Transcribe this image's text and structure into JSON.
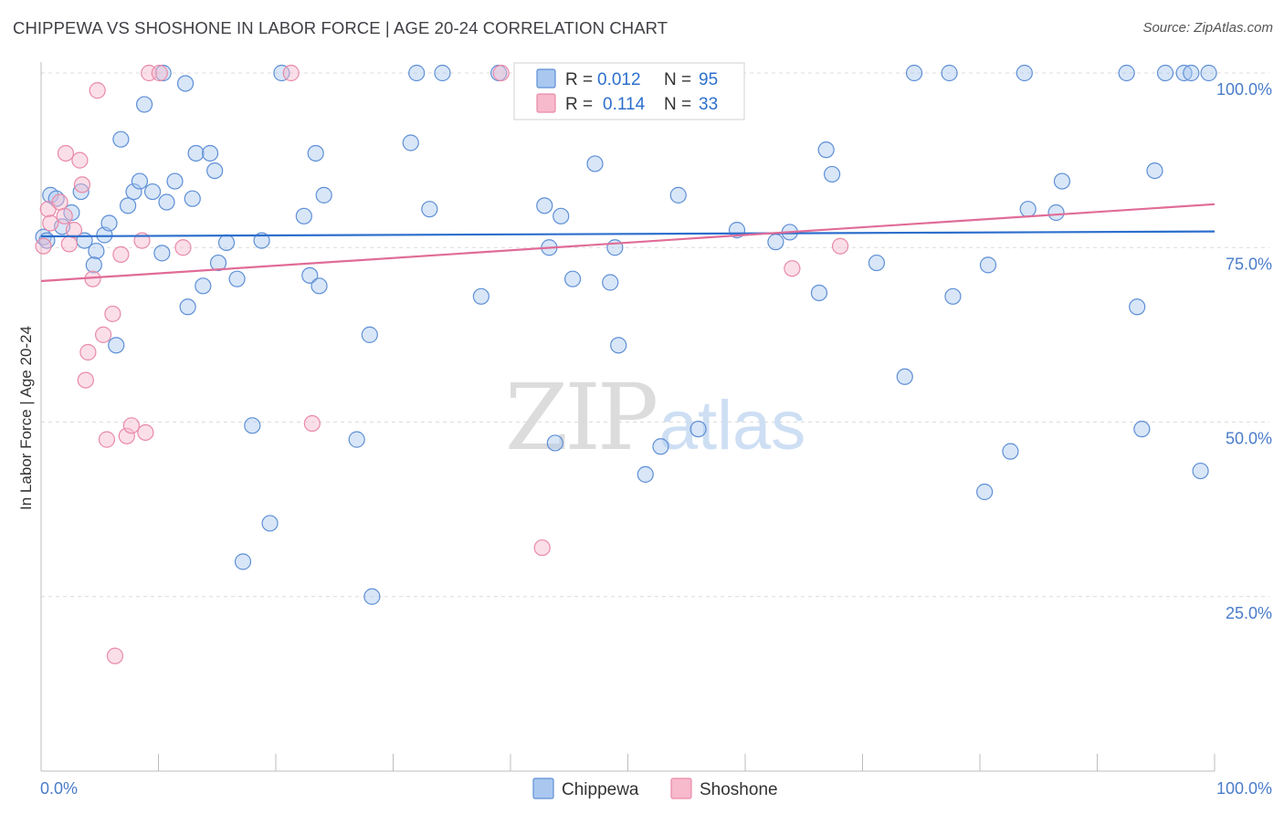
{
  "title": "CHIPPEWA VS SHOSHONE IN LABOR FORCE | AGE 20-24 CORRELATION CHART",
  "source": "Source: ZipAtlas.com",
  "watermark": {
    "zip": "ZIP",
    "atlas": "atlas"
  },
  "colors": {
    "chippewa_fill": "#a9c7ef",
    "chippewa_stroke": "#5e8fd6",
    "chippewa_line": "#2d6fcc",
    "shoshone_fill": "#f7b9cc",
    "shoshone_stroke": "#e98aa8",
    "shoshone_line": "#e06c97",
    "tick_text": "#4a7cc9",
    "grid": "#dcdcdc"
  },
  "stats_box": {
    "rows": [
      {
        "series": "Chippewa",
        "r_label": "R =",
        "r_value": "0.012",
        "n_label": "N =",
        "n_value": "95"
      },
      {
        "series": "Shoshone",
        "r_label": "R =",
        "r_value": "0.114",
        "n_label": "N =",
        "n_value": "33"
      }
    ]
  },
  "chart_data": {
    "type": "scatter",
    "xlabel": "",
    "ylabel": "In Labor Force | Age 20-24",
    "xlim": [
      0,
      100
    ],
    "ylim": [
      0,
      105
    ],
    "x_tick_labels": [
      {
        "value": 0,
        "label": "0.0%"
      },
      {
        "value": 100,
        "label": "100.0%"
      }
    ],
    "y_tick_labels": [
      {
        "value": 25,
        "label": "25.0%"
      },
      {
        "value": 50,
        "label": "50.0%"
      },
      {
        "value": 75,
        "label": "75.0%"
      },
      {
        "value": 100,
        "label": "100.0%"
      }
    ],
    "grid": "horizontal dashed",
    "legend": "bottom-center",
    "series": [
      {
        "name": "Chippewa",
        "trend": {
          "start": [
            0,
            76.6
          ],
          "end": [
            100,
            77.3
          ]
        },
        "points": [
          [
            0.2,
            76.5
          ],
          [
            0.8,
            82.5
          ],
          [
            1.3,
            82.0
          ],
          [
            2.6,
            80.0
          ],
          [
            3.4,
            83.0
          ],
          [
            1.8,
            78.0
          ],
          [
            3.7,
            76.0
          ],
          [
            4.7,
            74.5
          ],
          [
            4.5,
            72.5
          ],
          [
            5.4,
            76.8
          ],
          [
            5.8,
            78.5
          ],
          [
            6.4,
            61.0
          ],
          [
            6.8,
            90.5
          ],
          [
            7.4,
            81.0
          ],
          [
            7.9,
            83.0
          ],
          [
            8.4,
            84.5
          ],
          [
            8.8,
            95.5
          ],
          [
            9.5,
            83.0
          ],
          [
            10.4,
            100.0
          ],
          [
            10.3,
            74.2
          ],
          [
            10.7,
            81.5
          ],
          [
            11.4,
            84.5
          ],
          [
            12.3,
            98.5
          ],
          [
            12.5,
            66.5
          ],
          [
            12.9,
            82.0
          ],
          [
            13.2,
            88.5
          ],
          [
            13.8,
            69.5
          ],
          [
            14.4,
            88.5
          ],
          [
            14.8,
            86.0
          ],
          [
            15.1,
            72.8
          ],
          [
            15.8,
            75.7
          ],
          [
            16.7,
            70.5
          ],
          [
            17.2,
            30.0
          ],
          [
            18.0,
            49.5
          ],
          [
            18.8,
            76.0
          ],
          [
            19.5,
            35.5
          ],
          [
            20.5,
            100.0
          ],
          [
            22.4,
            79.5
          ],
          [
            22.9,
            71.0
          ],
          [
            23.4,
            88.5
          ],
          [
            23.7,
            69.5
          ],
          [
            24.1,
            82.5
          ],
          [
            26.9,
            47.5
          ],
          [
            28.0,
            62.5
          ],
          [
            28.2,
            25.0
          ],
          [
            31.5,
            90.0
          ],
          [
            32.0,
            100.0
          ],
          [
            33.1,
            80.5
          ],
          [
            34.2,
            100.0
          ],
          [
            37.5,
            68.0
          ],
          [
            39.0,
            100.0
          ],
          [
            41.6,
            100.0
          ],
          [
            42.9,
            81.0
          ],
          [
            43.3,
            75.0
          ],
          [
            43.8,
            47.0
          ],
          [
            44.3,
            79.5
          ],
          [
            45.3,
            70.5
          ],
          [
            46.4,
            96.5
          ],
          [
            47.2,
            87.0
          ],
          [
            48.5,
            70.0
          ],
          [
            48.9,
            75.0
          ],
          [
            49.2,
            61.0
          ],
          [
            51.5,
            42.5
          ],
          [
            52.8,
            46.5
          ],
          [
            54.3,
            82.5
          ],
          [
            56.0,
            49.0
          ],
          [
            57.5,
            100.0
          ],
          [
            59.3,
            77.5
          ],
          [
            62.6,
            75.8
          ],
          [
            63.8,
            77.2
          ],
          [
            66.3,
            68.5
          ],
          [
            66.9,
            89.0
          ],
          [
            67.4,
            85.5
          ],
          [
            71.2,
            72.8
          ],
          [
            73.6,
            56.5
          ],
          [
            74.4,
            100.0
          ],
          [
            77.4,
            100.0
          ],
          [
            77.7,
            68.0
          ],
          [
            80.4,
            40.0
          ],
          [
            80.7,
            72.5
          ],
          [
            82.6,
            45.8
          ],
          [
            83.8,
            100.0
          ],
          [
            84.1,
            80.5
          ],
          [
            86.5,
            80.0
          ],
          [
            87.0,
            84.5
          ],
          [
            92.5,
            100.0
          ],
          [
            93.4,
            66.5
          ],
          [
            93.8,
            49.0
          ],
          [
            94.9,
            86.0
          ],
          [
            95.8,
            100.0
          ],
          [
            97.4,
            100.0
          ],
          [
            98.0,
            100.0
          ],
          [
            98.8,
            43.0
          ],
          [
            99.5,
            100.0
          ],
          [
            0.5,
            76.0
          ]
        ]
      },
      {
        "name": "Shoshone",
        "trend": {
          "start": [
            0,
            70.2
          ],
          "end": [
            100,
            81.2
          ]
        },
        "points": [
          [
            0.2,
            75.2
          ],
          [
            0.6,
            80.5
          ],
          [
            0.8,
            78.5
          ],
          [
            1.6,
            81.5
          ],
          [
            2.0,
            79.5
          ],
          [
            2.1,
            88.5
          ],
          [
            2.4,
            75.5
          ],
          [
            2.8,
            77.5
          ],
          [
            3.3,
            87.5
          ],
          [
            3.5,
            84.0
          ],
          [
            3.8,
            56.0
          ],
          [
            4.0,
            60.0
          ],
          [
            4.4,
            70.5
          ],
          [
            4.8,
            97.5
          ],
          [
            5.3,
            62.5
          ],
          [
            5.6,
            47.5
          ],
          [
            6.1,
            65.5
          ],
          [
            6.3,
            16.5
          ],
          [
            6.8,
            74.0
          ],
          [
            7.3,
            48.0
          ],
          [
            7.7,
            49.5
          ],
          [
            8.6,
            76.0
          ],
          [
            8.9,
            48.5
          ],
          [
            9.2,
            100.0
          ],
          [
            10.1,
            100.0
          ],
          [
            12.1,
            75.0
          ],
          [
            21.3,
            100.0
          ],
          [
            23.1,
            49.8
          ],
          [
            39.2,
            100.0
          ],
          [
            42.7,
            32.0
          ],
          [
            59.0,
            100.0
          ],
          [
            64.0,
            72.0
          ],
          [
            68.1,
            75.2
          ]
        ]
      }
    ]
  },
  "legend_items": [
    {
      "series": "Chippewa",
      "label": "Chippewa"
    },
    {
      "series": "Shoshone",
      "label": "Shoshone"
    }
  ]
}
